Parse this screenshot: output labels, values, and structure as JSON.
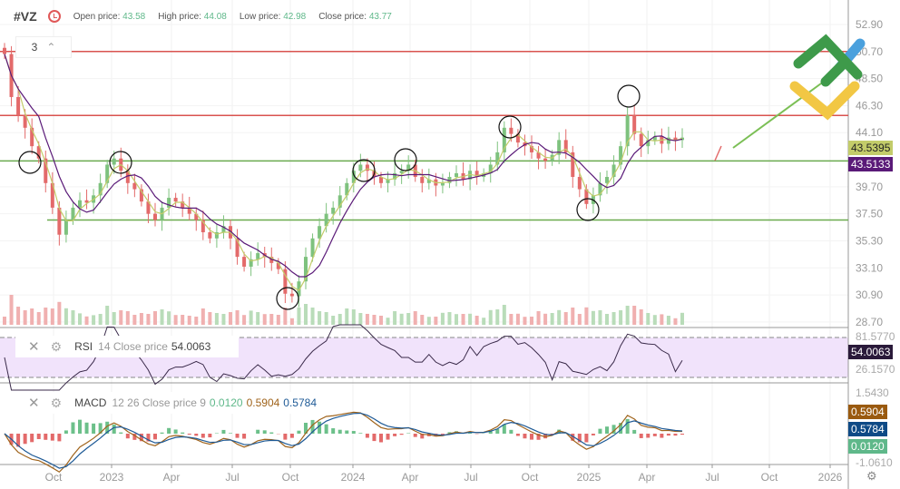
{
  "header": {
    "symbol": "#VZ",
    "open_label": "Open price:",
    "open": "43.58",
    "high_label": "High price:",
    "high": "44.08",
    "low_label": "Low price:",
    "low": "42.98",
    "close_label": "Close price:",
    "close": "43.77"
  },
  "zoom_selector": {
    "value": "3"
  },
  "price_axis": [
    "52.90",
    "50.70",
    "48.50",
    "46.30",
    "44.10",
    "39.70",
    "37.50",
    "35.30",
    "33.10",
    "30.90",
    "28.70"
  ],
  "price_tags": {
    "ma_fast": "43.5395",
    "ma_slow": "43.5133"
  },
  "rsi": {
    "name": "RSI",
    "params": "14 Close price",
    "value": "54.0063",
    "axis_top": "81.5770",
    "axis_bottom": "26.1570"
  },
  "macd": {
    "name": "MACD",
    "params": "12 26 Close price 9",
    "hist": "0.0120",
    "macd": "0.5904",
    "signal": "0.5784",
    "axis_top": "1.5430",
    "axis_bottom": "-1.0610"
  },
  "time_axis": [
    "Oct",
    "2023",
    "Apr",
    "Jul",
    "Oct",
    "2024",
    "Apr",
    "Jul",
    "Oct",
    "2025",
    "Apr",
    "Jul",
    "Oct",
    "2026"
  ],
  "colors": {
    "up": "#7ec27e",
    "down": "#e36a6a",
    "resistance": "#d9534f",
    "support": "#6aaa4f",
    "ma_fast": "#c3cc6a",
    "ma_slow": "#5a1a78",
    "rsi_bg": "#f1e3fb",
    "macd_line": "#a0641c",
    "signal_line": "#1e5a96"
  },
  "chart_data": {
    "type": "candlestick",
    "closes": [
      50.5,
      47,
      45.5,
      44.5,
      43,
      42,
      40,
      38,
      35.8,
      37,
      38,
      38.6,
      38.4,
      39,
      40,
      41.5,
      42,
      41,
      40,
      39.5,
      38.5,
      37.5,
      37,
      38,
      38.8,
      38.5,
      38,
      37.5,
      37,
      36,
      35.5,
      36,
      36.5,
      35.5,
      34,
      33.2,
      33.8,
      34.3,
      34,
      33.5,
      33,
      31,
      30.8,
      32,
      34,
      35.5,
      36.5,
      37.5,
      38,
      39,
      40,
      41,
      41.5,
      41,
      40.5,
      40,
      40.3,
      40.8,
      41,
      41.5,
      40.5,
      40,
      40.3,
      39.8,
      40,
      40.5,
      40.8,
      40.3,
      41,
      40.5,
      40.8,
      41.5,
      42.5,
      44.5,
      44,
      43.3,
      43,
      42.5,
      42,
      41.8,
      42.3,
      43.5,
      42.5,
      40.5,
      39.5,
      38.3,
      39,
      40,
      40.5,
      41.5,
      43,
      45.5,
      44,
      43,
      43.5,
      43.8,
      43.2,
      43.7,
      43.5,
      43.7
    ],
    "resistance_levels": [
      50.7,
      45.5
    ],
    "support_levels": [
      41.8,
      37.0
    ],
    "y_range": [
      28.7,
      52.9
    ]
  }
}
